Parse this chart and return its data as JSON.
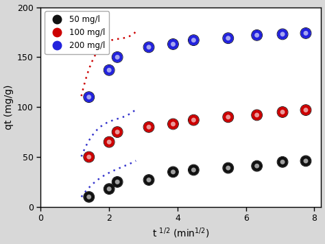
{
  "series": [
    {
      "label": "50 mg/l",
      "dot_color": "#111111",
      "line_color": "#3333cc",
      "x": [
        1.41,
        2.0,
        2.24,
        3.16,
        3.87,
        4.47,
        5.48,
        6.32,
        7.07,
        7.75
      ],
      "y": [
        10,
        18,
        25,
        27,
        35,
        37,
        39,
        41,
        45,
        46
      ]
    },
    {
      "label": "100 mg/l",
      "dot_color": "#cc0000",
      "line_color": "#3333cc",
      "x": [
        1.41,
        2.0,
        2.24,
        3.16,
        3.87,
        4.47,
        5.48,
        6.32,
        7.07,
        7.75
      ],
      "y": [
        50,
        65,
        75,
        80,
        83,
        87,
        90,
        92,
        95,
        97
      ]
    },
    {
      "label": "200 mg/l",
      "dot_color": "#2222dd",
      "line_color": "#cc0000",
      "x": [
        1.41,
        2.0,
        2.24,
        3.16,
        3.87,
        4.47,
        5.48,
        6.32,
        7.07,
        7.75
      ],
      "y": [
        110,
        137,
        150,
        160,
        163,
        167,
        169,
        172,
        173,
        174
      ]
    }
  ],
  "xlabel": "t $^{1/2}$ (min$^{1/2}$)",
  "ylabel": "qt (mg/g)",
  "xlim": [
    0,
    8.2
  ],
  "ylim": [
    0,
    200
  ],
  "xticks": [
    0,
    2,
    4,
    6,
    8
  ],
  "yticks": [
    0,
    50,
    100,
    150,
    200
  ],
  "background_color": "#d8d8d8",
  "plot_background": "#ffffff",
  "legend_loc": "upper left"
}
